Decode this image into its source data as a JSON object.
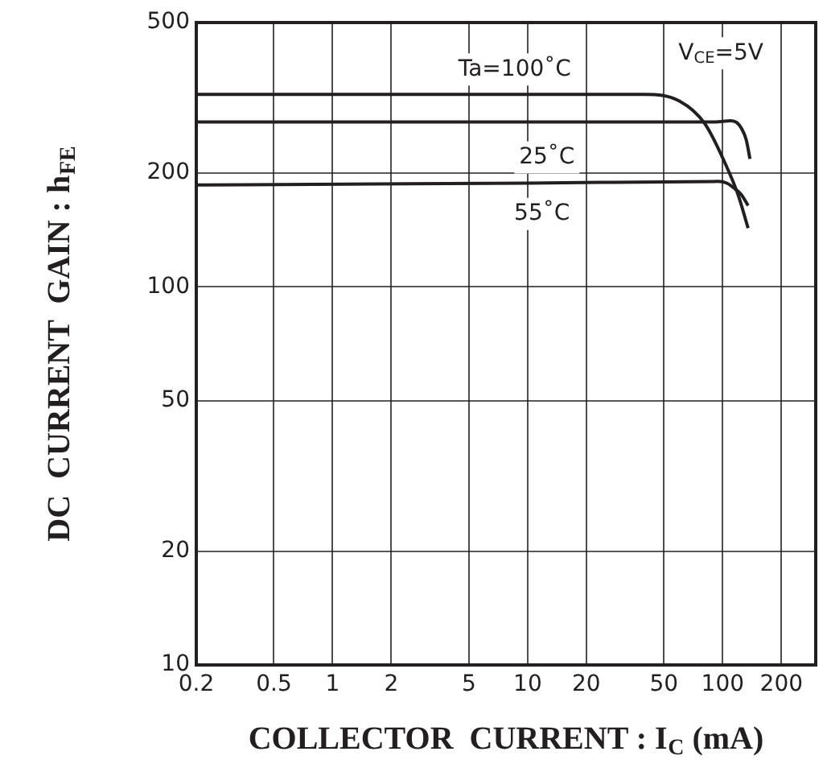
{
  "chart_data": {
    "type": "line",
    "xlabel": "COLLECTOR  CURRENT : I$_{C}$ (mA)",
    "ylabel": "DC  CURRENT  GAIN : h$_{FE}$",
    "log": "xy",
    "xlim": [
      0.2,
      300
    ],
    "ylim": [
      10,
      500
    ],
    "xticks": [
      0.2,
      0.5,
      1,
      2,
      5,
      10,
      20,
      50,
      100,
      200
    ],
    "yticks": [
      10,
      20,
      50,
      100,
      200,
      500
    ],
    "grid": true,
    "legend": false,
    "marker": "none",
    "line_style": "solid",
    "series": [
      {
        "color": "#231f20",
        "x": [
          0.2,
          10,
          40,
          60,
          81,
          103,
          120,
          135
        ],
        "values": [
          323,
          323,
          323,
          310,
          270,
          212,
          175,
          143
        ]
      },
      {
        "color": "#231f20",
        "x": [
          0.2,
          10,
          92,
          110,
          118,
          125,
          132,
          138
        ],
        "values": [
          273,
          273,
          273,
          275,
          272,
          262,
          245,
          218
        ]
      },
      {
        "color": "#231f20",
        "x": [
          0.2,
          10,
          94,
          105,
          115,
          125,
          135
        ],
        "values": [
          186,
          188,
          190,
          188,
          182,
          175,
          164
        ]
      }
    ],
    "annotations": [
      "Ta=100˚C",
      "25˚C",
      "55˚C",
      "V$_{CE}$=5V"
    ]
  }
}
